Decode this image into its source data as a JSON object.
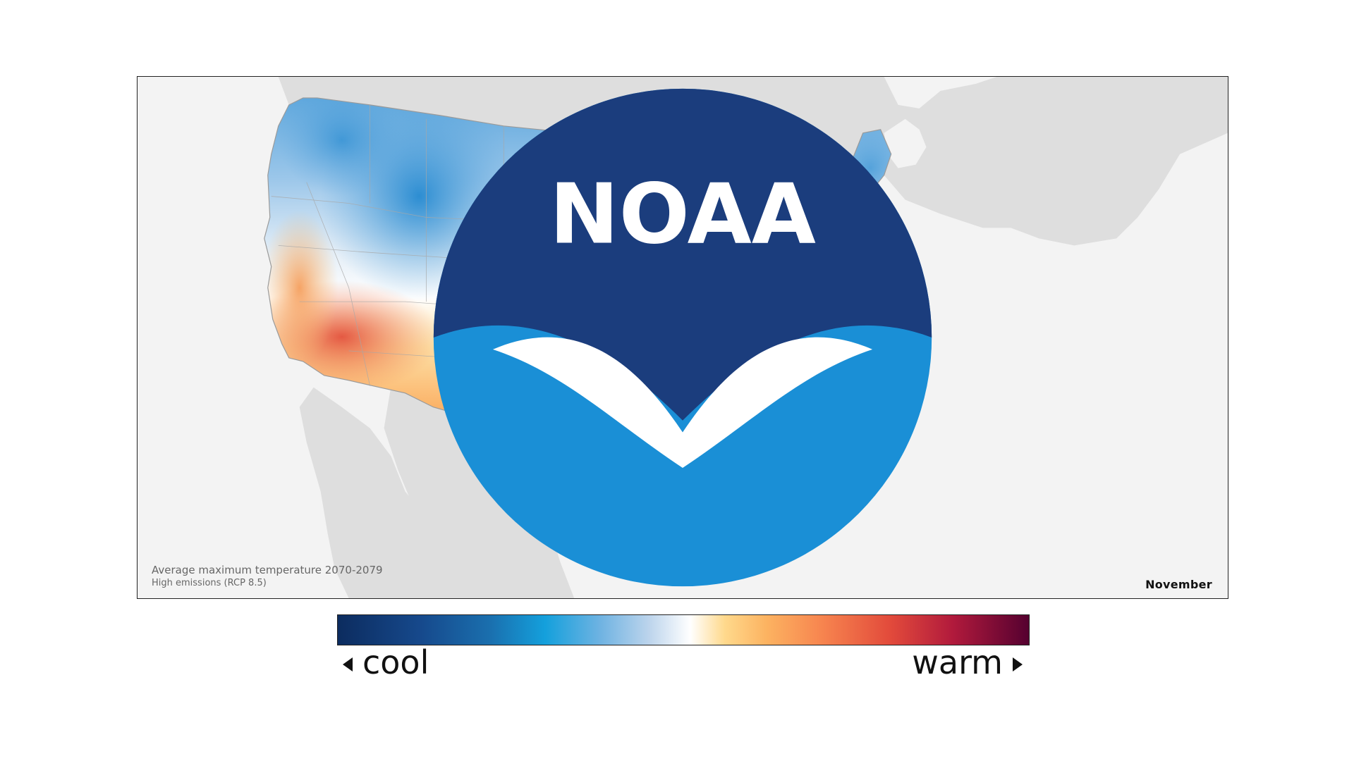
{
  "map": {
    "caption_line1": "Average maximum temperature 2070-2079",
    "caption_line2": "High emissions (RCP 8.5)",
    "month": "November",
    "logo_text": "NOAA"
  },
  "legend": {
    "cool_label": "cool",
    "warm_label": "warm",
    "colors": [
      "#0c2c5f",
      "#1a6fae",
      "#14a0dc",
      "#bcd4ec",
      "#ffffff",
      "#ffd98c",
      "#f7854f",
      "#e24a3b",
      "#b11a3c",
      "#550130"
    ]
  }
}
